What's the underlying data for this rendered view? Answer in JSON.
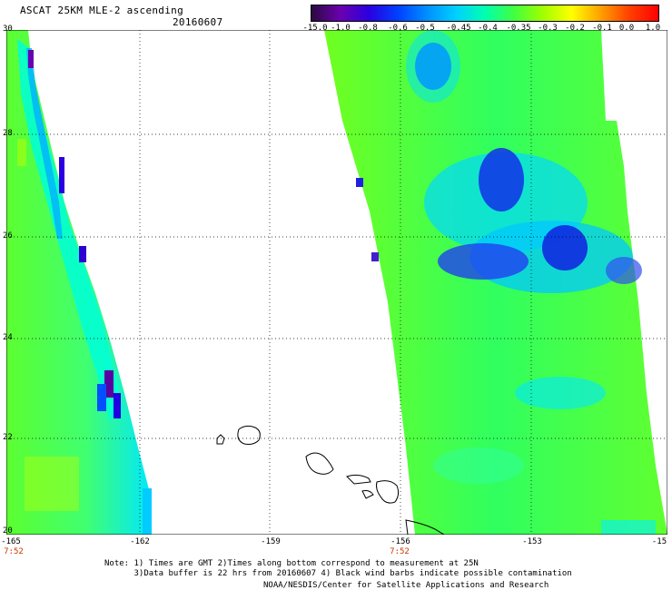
{
  "header": {
    "title": "ASCAT 25KM MLE-2 ascending",
    "date": "20160607"
  },
  "colorbar": {
    "labels": [
      "-15.0",
      "-1.0",
      "-0.8",
      "-0.6",
      "-0.5",
      "-0.45",
      "-0.4",
      "-0.35",
      "-0.3",
      "-0.2",
      "-0.1",
      "0.0",
      "1.0"
    ],
    "colors": [
      "#2a0a40",
      "#6b00b0",
      "#2a00e0",
      "#0040ff",
      "#0090ff",
      "#00d0ff",
      "#00ffb0",
      "#40ff40",
      "#a0ff00",
      "#ffff00",
      "#ffa000",
      "#ff4000",
      "#ff0000"
    ]
  },
  "map": {
    "lat_labels": [
      "30",
      "28",
      "26",
      "24",
      "22",
      "20"
    ],
    "lon_labels": [
      "-165",
      "-162",
      "-159",
      "-156",
      "-153",
      "-15"
    ],
    "time_labels": [
      "7:52",
      "7:52"
    ]
  },
  "notes": {
    "line1": "Note: 1) Times are GMT 2)Times along bottom correspond to measurement at 25N",
    "line2": "      3)Data buffer is 22 hrs from 20160607 4) Black wind barbs indicate possible contamination",
    "credit": "NOAA/NESDIS/Center for Satellite Applications and Research"
  }
}
